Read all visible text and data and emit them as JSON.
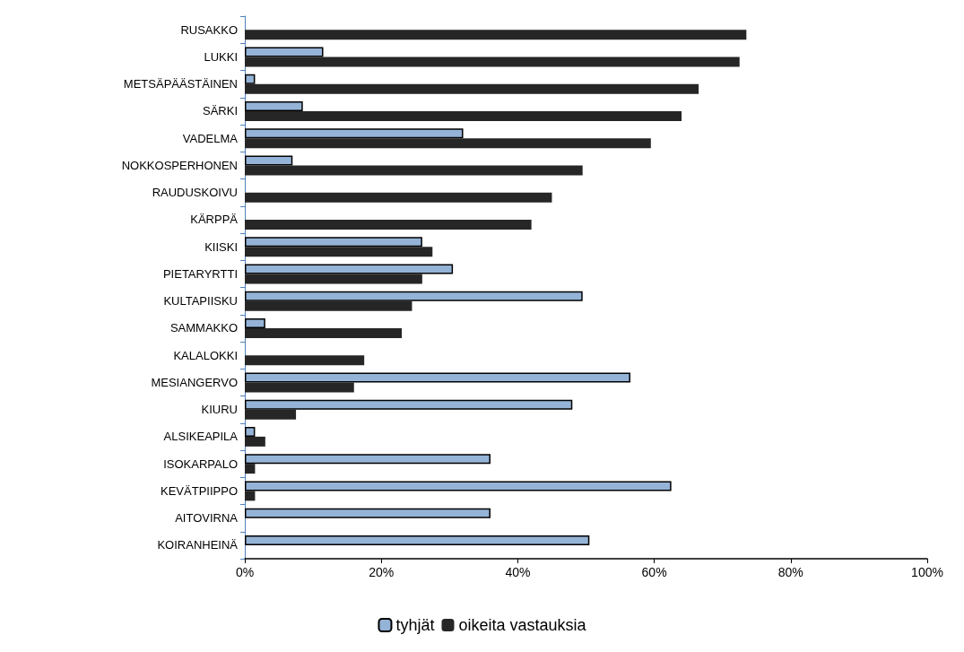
{
  "chart_data": {
    "type": "bar",
    "orientation": "horizontal",
    "categories": [
      "RUSAKKO",
      "LUKKI",
      "METSÄPÄÄSTÄINEN",
      "SÄRKI",
      "VADELMA",
      "NOKKOSPERHONEN",
      "RAUDUSKOIVU",
      "KÄRPPÄ",
      "KIISKI",
      "PIETARYRTTI",
      "KULTAPIISKU",
      "SAMMAKKO",
      "KALALOKKI",
      "MESIANGERVO",
      "KIURU",
      "ALSIKEAPILA",
      "ISOKARPALO",
      "KEVÄTPIIPPO",
      "AITOVIRNA",
      "KOIRANHEINÄ"
    ],
    "series": [
      {
        "name": "tyhjät",
        "color": "#95b3d7",
        "values": [
          null,
          11.5,
          1.5,
          8.5,
          32,
          7,
          null,
          null,
          26,
          30.5,
          49.5,
          3,
          null,
          56.5,
          48,
          1.5,
          36,
          62.5,
          36,
          50.5
        ]
      },
      {
        "name": "oikeita vastauksia",
        "color": "#262626",
        "values": [
          73.5,
          72.5,
          66.5,
          64,
          59.5,
          49.5,
          45,
          42,
          27.5,
          26,
          24.5,
          23,
          17.5,
          16,
          7.5,
          3,
          1.5,
          1.5,
          null,
          null
        ]
      }
    ],
    "xlim": [
      0,
      100
    ],
    "xticks": [
      {
        "value": 0,
        "label": "0%"
      },
      {
        "value": 20,
        "label": "20%"
      },
      {
        "value": 40,
        "label": "40%"
      },
      {
        "value": 60,
        "label": "60%"
      },
      {
        "value": 80,
        "label": "80%"
      },
      {
        "value": 100,
        "label": "100%"
      }
    ],
    "grid": false,
    "legend": "bottom"
  }
}
